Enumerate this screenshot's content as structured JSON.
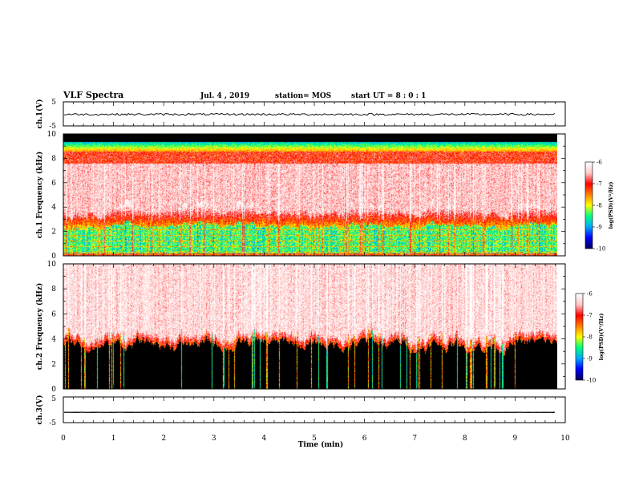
{
  "header": {
    "title": "VLF Spectra",
    "date": "Jul. 4 , 2019",
    "station": "station= MOS",
    "start": "start UT = 8 : 0 : 1"
  },
  "chart_data": [
    {
      "type": "line",
      "ylabel": "ch.1(V)",
      "ylim": [
        -5,
        5
      ],
      "yticks": [
        "5",
        "-5"
      ],
      "series": [
        {
          "values": [
            -0.2
          ]
        }
      ]
    },
    {
      "type": "heatmap",
      "ylabel": "ch.1 Frequency (kHz)",
      "ylim": [
        0,
        10
      ],
      "yticks": [
        "0",
        "2",
        "4",
        "6",
        "8",
        "10"
      ],
      "colorbar": {
        "label": "log(PSD)(V²/Hz)",
        "ticks": [
          "-6",
          "-7",
          "-8",
          "-9",
          "-10"
        ],
        "range": [
          -10,
          -6
        ]
      }
    },
    {
      "type": "heatmap",
      "ylabel": "ch.2 Frequency (kHz)",
      "ylim": [
        0,
        10
      ],
      "yticks": [
        "0",
        "2",
        "4",
        "6",
        "8",
        "10"
      ],
      "colorbar": {
        "label": "log(PSD)(V²/Hz)",
        "ticks": [
          "-6",
          "-7",
          "-8",
          "-9",
          "-10"
        ],
        "range": [
          -10,
          -6
        ]
      }
    },
    {
      "type": "line",
      "ylabel": "ch.3(V)",
      "ylim": [
        -5,
        5
      ],
      "yticks": [
        "5",
        "-5"
      ],
      "series": [
        {
          "values": [
            -1.0
          ]
        }
      ]
    }
  ],
  "xaxis": {
    "label": "Time (min)",
    "range": [
      0,
      10
    ],
    "ticks": [
      "0",
      "1",
      "2",
      "3",
      "4",
      "5",
      "6",
      "7",
      "8",
      "9",
      "10"
    ]
  },
  "colors": {
    "spectrum": [
      "#000060",
      "#0000ff",
      "#00aaff",
      "#00ff80",
      "#ffff00",
      "#ff8000",
      "#ff0000",
      "#ffc8c8",
      "#ffffff"
    ]
  }
}
